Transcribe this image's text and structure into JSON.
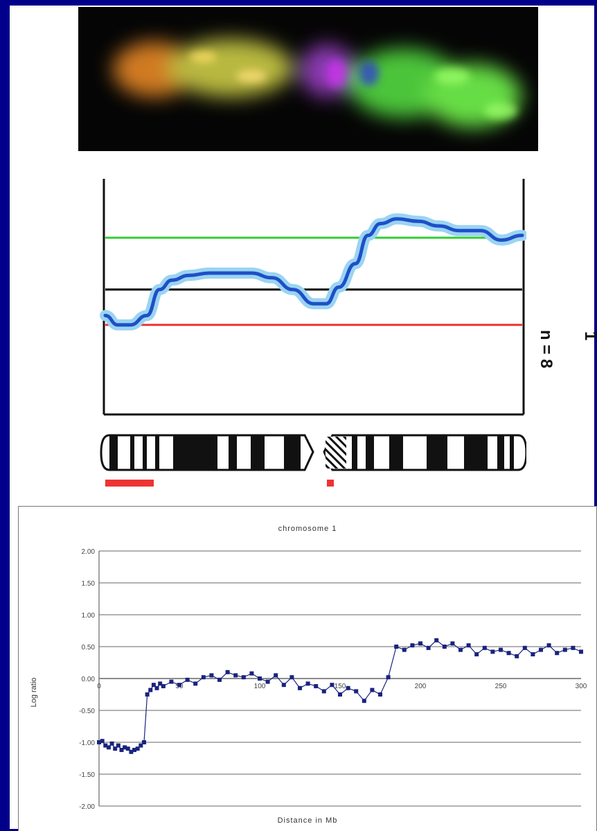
{
  "profile": {
    "chromosome_label": "1",
    "n_label": "n = 8"
  },
  "chart_data": [
    {
      "type": "line",
      "title": "",
      "series": [
        {
          "name": "",
          "color": "#1f4fc8",
          "x": [
            0,
            0.03,
            0.06,
            0.1,
            0.13,
            0.16,
            0.2,
            0.25,
            0.3,
            0.35,
            0.4,
            0.45,
            0.5,
            0.53,
            0.56,
            0.6,
            0.63,
            0.66,
            0.7,
            0.75,
            0.8,
            0.85,
            0.9,
            0.95,
            1.0
          ],
          "y": [
            0.58,
            0.62,
            0.62,
            0.58,
            0.47,
            0.43,
            0.41,
            0.4,
            0.4,
            0.4,
            0.42,
            0.47,
            0.53,
            0.53,
            0.46,
            0.36,
            0.24,
            0.19,
            0.17,
            0.18,
            0.2,
            0.22,
            0.22,
            0.26,
            0.24
          ]
        }
      ],
      "reference_lines": [
        {
          "color": "#33cc33",
          "y": 0.25
        },
        {
          "color": "#000000",
          "y": 0.47
        },
        {
          "color": "#ee3333",
          "y": 0.62
        }
      ]
    },
    {
      "type": "scatter",
      "title": "chromosome 1",
      "xlabel": "Distance in Mb",
      "ylabel": "Log ratio",
      "xlim": [
        0,
        300
      ],
      "ylim": [
        -2.0,
        2.0
      ],
      "x_ticks": [
        "0",
        "50",
        "100",
        "150",
        "200",
        "250",
        "300"
      ],
      "y_ticks": [
        "2.00",
        "1.50",
        "1.00",
        "0.50",
        "0.00",
        "-0.50",
        "-1.00",
        "-1.50",
        "-2.00"
      ],
      "grid": true,
      "series": [
        {
          "name": "",
          "color": "#1a237e",
          "x": [
            0,
            2,
            4,
            6,
            8,
            10,
            12,
            14,
            16,
            18,
            20,
            22,
            24,
            26,
            28,
            30,
            32,
            34,
            36,
            38,
            40,
            45,
            50,
            55,
            60,
            65,
            70,
            75,
            80,
            85,
            90,
            95,
            100,
            105,
            110,
            115,
            120,
            125,
            130,
            135,
            140,
            145,
            150,
            155,
            160,
            165,
            170,
            175,
            180,
            185,
            190,
            195,
            200,
            205,
            210,
            215,
            220,
            225,
            230,
            235,
            240,
            245,
            250,
            255,
            260,
            265,
            270,
            275,
            280,
            285,
            290,
            295,
            300
          ],
          "y": [
            -1.0,
            -0.98,
            -1.05,
            -1.08,
            -1.02,
            -1.1,
            -1.05,
            -1.12,
            -1.08,
            -1.1,
            -1.15,
            -1.12,
            -1.1,
            -1.05,
            -1.0,
            -0.25,
            -0.18,
            -0.1,
            -0.15,
            -0.08,
            -0.12,
            -0.05,
            -0.1,
            -0.02,
            -0.08,
            0.02,
            0.05,
            -0.02,
            0.1,
            0.05,
            0.02,
            0.08,
            0.0,
            -0.05,
            0.05,
            -0.1,
            0.02,
            -0.15,
            -0.08,
            -0.12,
            -0.2,
            -0.1,
            -0.25,
            -0.15,
            -0.2,
            -0.35,
            -0.18,
            -0.25,
            0.02,
            0.5,
            0.45,
            0.52,
            0.55,
            0.48,
            0.6,
            0.5,
            0.55,
            0.45,
            0.52,
            0.38,
            0.48,
            0.42,
            0.45,
            0.4,
            0.35,
            0.48,
            0.38,
            0.45,
            0.52,
            0.4,
            0.45,
            0.48,
            0.42
          ]
        }
      ]
    }
  ]
}
